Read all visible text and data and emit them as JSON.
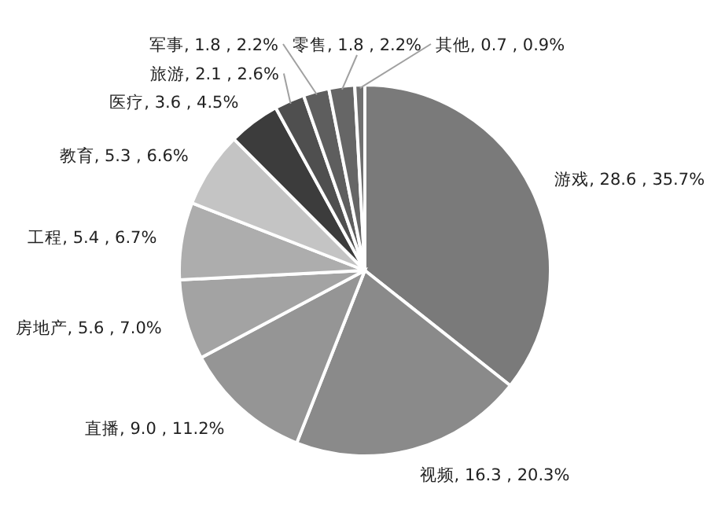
{
  "chart_data": {
    "type": "pie",
    "categories": [
      "游戏",
      "视频",
      "直播",
      "房地产",
      "工程",
      "教育",
      "医疗",
      "旅游",
      "军事",
      "零售",
      "其他"
    ],
    "values": [
      28.6,
      16.3,
      9.0,
      5.6,
      5.4,
      5.3,
      3.6,
      2.1,
      1.8,
      1.8,
      0.7
    ],
    "value_labels": [
      "28.6 , 35.7%",
      "16.3 , 20.3%",
      "9.0 , 11.2%",
      "5.6 , 7.0%",
      "5.4 , 6.7%",
      "5.3 , 6.6%",
      "3.6 , 4.5%",
      "2.1 , 2.6%",
      "1.8 , 2.2%",
      "1.8 , 2.2%",
      "0.7 , 0.9%"
    ],
    "colors": [
      "#7a7a7a",
      "#8a8a8a",
      "#959595",
      "#a3a3a3",
      "#adadad",
      "#c4c4c4",
      "#3c3c3c",
      "#4f4f4f",
      "#5e5e5e",
      "#666666",
      "#707070"
    ]
  }
}
